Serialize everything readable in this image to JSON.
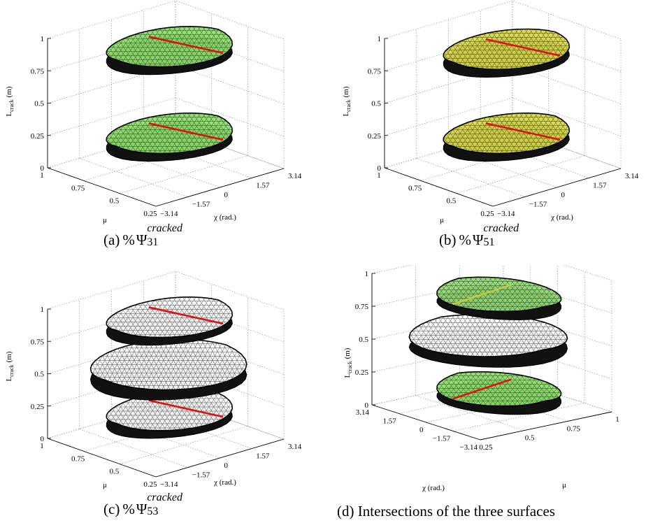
{
  "chart_data": [
    {
      "id": "a",
      "type": "surface3d",
      "caption": {
        "label": "(a)",
        "prefix": "%",
        "symbol": "Ψ",
        "superscript": "cracked",
        "subscript": "31"
      },
      "zlabel": "L",
      "zlabel_sub": "crack",
      "zlabel_unit": "(m)",
      "xlabel": "μ",
      "ylabel": "χ (rad.)",
      "z_ticks": [
        "0",
        "0.25",
        "0.5",
        "0.75",
        "1"
      ],
      "mu_ticks": [
        "1",
        "0.75",
        "0.5",
        "0.25"
      ],
      "chi_ticks": [
        "−3.14",
        "−1.57",
        "0",
        "1.57",
        "3.14"
      ],
      "surfaces": [
        {
          "level": 0.25,
          "fill": "#8fdd70",
          "edge_line": "#e01010"
        },
        {
          "level": 0.92,
          "fill": "#8fdd70",
          "edge_line": "#e01010"
        }
      ]
    },
    {
      "id": "b",
      "type": "surface3d",
      "caption": {
        "label": "(b)",
        "prefix": "%",
        "symbol": "Ψ",
        "superscript": "cracked",
        "subscript": "51"
      },
      "zlabel": "L",
      "zlabel_sub": "crack",
      "zlabel_unit": "(m)",
      "xlabel": "μ",
      "ylabel": "χ (rad.)",
      "z_ticks": [
        "0",
        "0.25",
        "0.5",
        "0.75",
        "1"
      ],
      "mu_ticks": [
        "1",
        "0.75",
        "0.5",
        "0.25"
      ],
      "chi_ticks": [
        "−3.14",
        "−1.57",
        "0",
        "1.57",
        "3.14"
      ],
      "surfaces": [
        {
          "level": 0.25,
          "fill": "#d8d850",
          "edge_line": "#e01010"
        },
        {
          "level": 0.9,
          "fill": "#d8d850",
          "edge_line": "#e01010"
        }
      ]
    },
    {
      "id": "c",
      "type": "surface3d",
      "caption": {
        "label": "(c)",
        "prefix": "%",
        "symbol": "Ψ",
        "superscript": "cracked",
        "subscript": "53"
      },
      "zlabel": "L",
      "zlabel_sub": "crack",
      "zlabel_unit": "(m)",
      "xlabel": "μ",
      "ylabel": "χ (rad.)",
      "z_ticks": [
        "0",
        "0.25",
        "0.5",
        "0.75",
        "1"
      ],
      "mu_ticks": [
        "1",
        "0.75",
        "0.5",
        "0.25"
      ],
      "chi_ticks": [
        "−3.14",
        "−1.57",
        "0",
        "1.57",
        "3.14"
      ],
      "surfaces": [
        {
          "level": 0.2,
          "fill": "#ffffff",
          "edge_line": "#e01010"
        },
        {
          "level": 0.52,
          "fill": "#ffffff",
          "edge_line": null
        },
        {
          "level": 0.92,
          "fill": "#ffffff",
          "edge_line": "#e01010"
        }
      ]
    },
    {
      "id": "d",
      "type": "surface3d",
      "caption": {
        "text": "(d) Intersections of the three surfaces"
      },
      "zlabel": "L",
      "zlabel_sub": "crack",
      "zlabel_unit": "(m)",
      "xlabel": "μ",
      "ylabel": "χ (rad.)",
      "z_ticks": [
        "0",
        "0.25",
        "0.5",
        "0.75",
        "1"
      ],
      "mu_ticks": [
        "1",
        "0.75",
        "0.5",
        "0.25"
      ],
      "chi_ticks": [
        "3.14",
        "1.57",
        "0",
        "−1.57",
        "−3.14"
      ],
      "surfaces": [
        {
          "level": 0.1,
          "fill": "#8fdd70",
          "edge_line": "#e01010"
        },
        {
          "level": 0.5,
          "fill": "#ffffff",
          "edge_line": null
        },
        {
          "level": 0.82,
          "fill": "#8fdd70",
          "edge_line": "#c8c840"
        }
      ]
    }
  ]
}
